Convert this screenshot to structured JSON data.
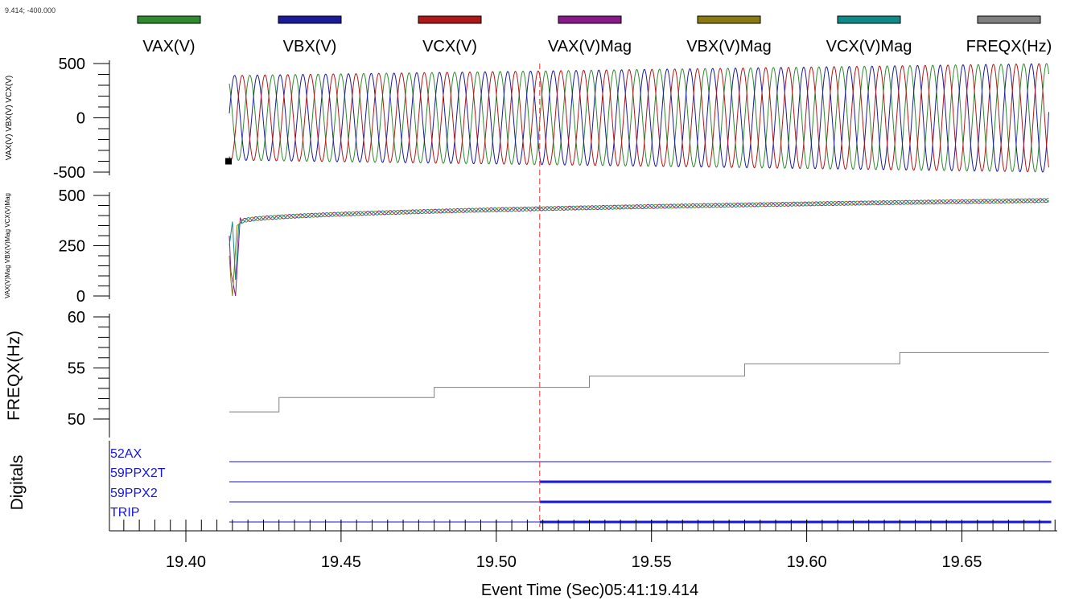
{
  "cursor_readout": "9.414; -400.000",
  "colors": {
    "vax": "#2e8b2e",
    "vbx": "#1a1a9a",
    "vcx": "#b01818",
    "vaxmag": "#8a1a8a",
    "vbxmag": "#8a7a10",
    "vcxmag": "#0f8a8a",
    "freq": "#808080",
    "digital": "#1515dd",
    "cursor": "#e03030",
    "axis": "#000000"
  },
  "chart_data": {
    "type": "line",
    "legend": [
      {
        "name": "VAX(V)",
        "color": "#2e8b2e"
      },
      {
        "name": "VBX(V)",
        "color": "#1a1a9a"
      },
      {
        "name": "VCX(V)",
        "color": "#b01818"
      },
      {
        "name": "VAX(V)Mag",
        "color": "#8a1a8a"
      },
      {
        "name": "VBX(V)Mag",
        "color": "#8a7a10"
      },
      {
        "name": "VCX(V)Mag",
        "color": "#0f8a8a"
      },
      {
        "name": "FREQX(Hz)",
        "color": "#808080"
      }
    ],
    "xlabel": "Event Time (Sec)05:41:19.414",
    "xlim": [
      19.375,
      19.68
    ],
    "xticks": [
      19.4,
      19.45,
      19.5,
      19.55,
      19.6,
      19.65
    ],
    "xtick_labels": [
      "19.40",
      "19.45",
      "19.50",
      "19.55",
      "19.60",
      "19.65"
    ],
    "cursor_x": 19.514,
    "data_start": 19.414,
    "data_end": 19.678,
    "panels": [
      {
        "id": "voltage",
        "ylabel": "VAX(V) VBX(V) VCX(V)",
        "ylim": [
          -500,
          500
        ],
        "yticks": [
          500,
          0,
          -500
        ],
        "ytick_labels": [
          "500",
          "0",
          "-500"
        ],
        "waveform": {
          "cycles": 36,
          "amp_start": 390,
          "amp_end": 500,
          "series": [
            {
              "name": "VAX(V)",
              "phase_deg": 0
            },
            {
              "name": "VBX(V)",
              "phase_deg": -120
            },
            {
              "name": "VCX(V)",
              "phase_deg": 120
            }
          ]
        }
      },
      {
        "id": "magnitude",
        "ylabel": "VAX(V)Mag VBX(V)Mag VCX(V)Mag",
        "ylim": [
          0,
          500
        ],
        "yticks": [
          500,
          250,
          0
        ],
        "ytick_labels": [
          "500",
          "250",
          "0"
        ],
        "magnitude": {
          "start": 370,
          "end": 475,
          "ripple": 10,
          "ripple_cycles": 72,
          "initial_dip": [
            {
              "series": "VAX(V)Mag",
              "x": [
                19.414,
                19.4145,
                19.416,
                19.4175,
                19.418
              ],
              "y": [
                300,
                120,
                0,
                390,
                370
              ]
            },
            {
              "series": "VBX(V)Mag",
              "x": [
                19.414,
                19.4145,
                19.415,
                19.4165,
                19.418
              ],
              "y": [
                200,
                80,
                0,
                350,
                370
              ]
            },
            {
              "series": "VCX(V)Mag",
              "x": [
                19.414,
                19.415,
                19.416,
                19.417,
                19.418
              ],
              "y": [
                250,
                370,
                80,
                350,
                370
              ]
            }
          ]
        }
      },
      {
        "id": "frequency",
        "ylabel": "FREQX(Hz)",
        "ylim": [
          48.5,
          60
        ],
        "yticks": [
          60,
          55,
          50
        ],
        "ytick_labels": [
          "60",
          "55",
          "50"
        ],
        "series": [
          {
            "name": "FREQX(Hz)",
            "x": [
              19.414,
              19.43,
              19.43,
              19.48,
              19.48,
              19.53,
              19.53,
              19.58,
              19.58,
              19.63,
              19.63,
              19.678
            ],
            "y": [
              50.7,
              50.7,
              52.1,
              52.1,
              53.1,
              53.1,
              54.2,
              54.2,
              55.4,
              55.4,
              56.5,
              56.5
            ]
          }
        ]
      }
    ],
    "digitals": {
      "label": "Digitals",
      "channels": [
        {
          "name": "52AX",
          "active_from": null
        },
        {
          "name": "59PPX2T",
          "active_from": 19.514
        },
        {
          "name": "59PPX2",
          "active_from": 19.514
        },
        {
          "name": "TRIP",
          "active_from": 19.514
        }
      ]
    }
  }
}
